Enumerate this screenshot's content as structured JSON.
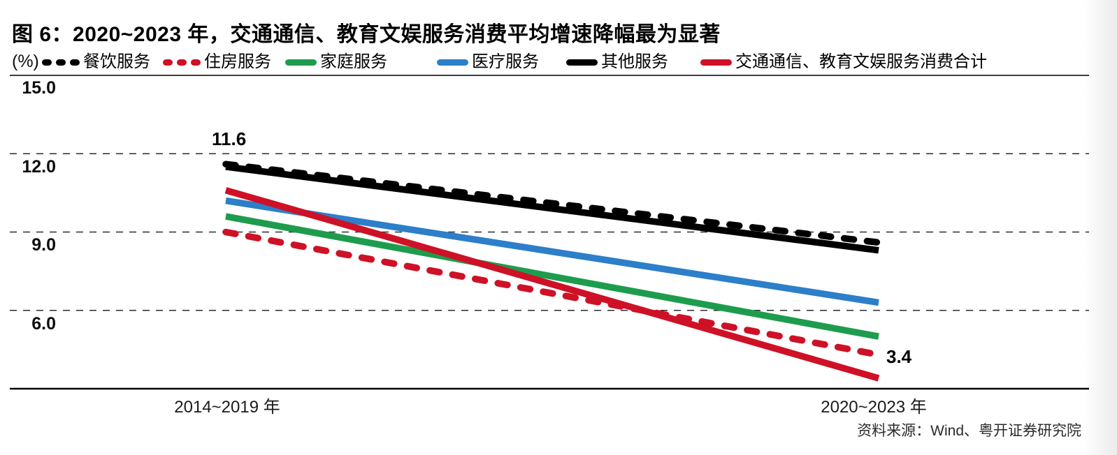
{
  "title": "图 6：2020~2023 年，交通通信、教育文娱服务消费平均增速降幅最为显著",
  "unit_label": "(%)",
  "source": "资料来源：Wind、粤开证券研究院",
  "chart_data": {
    "type": "line",
    "categories": [
      "2014~2019 年",
      "2020~2023 年"
    ],
    "series": [
      {
        "id": "catering-services",
        "name": "餐饮服务",
        "color": "#000000",
        "style": "dashed",
        "values": [
          11.6,
          8.6
        ]
      },
      {
        "id": "housing-services",
        "name": "住房服务",
        "color": "#ce1126",
        "style": "dashed",
        "values": [
          9.0,
          4.3
        ]
      },
      {
        "id": "household-services",
        "name": "家庭服务",
        "color": "#1e9c4d",
        "style": "solid",
        "values": [
          9.6,
          5.0
        ]
      },
      {
        "id": "medical-services",
        "name": "医疗服务",
        "color": "#2c7fc8",
        "style": "solid",
        "values": [
          10.2,
          6.3
        ]
      },
      {
        "id": "other-services",
        "name": "其他服务",
        "color": "#000000",
        "style": "solid",
        "values": [
          11.5,
          8.3
        ]
      },
      {
        "id": "transport-edu-services-total",
        "name": "交通通信、教育文娱服务消费合计",
        "color": "#ce1126",
        "style": "solid",
        "values": [
          10.6,
          3.4
        ]
      }
    ],
    "ylabel": "(%)",
    "ylim": [
      3,
      15
    ],
    "yticks": [
      15.0,
      12.0,
      9.0,
      6.0
    ],
    "ytick_labels": [
      "15.0",
      "12.0",
      "9.0",
      "6.0"
    ],
    "grid": "horizontal-dashed",
    "legend_position": "top",
    "annotations": [
      {
        "text": "11.6",
        "series": "餐饮服务",
        "point": "first"
      },
      {
        "text": "3.4",
        "series": "交通通信、教育文娱服务消费合计",
        "point": "last"
      }
    ]
  }
}
